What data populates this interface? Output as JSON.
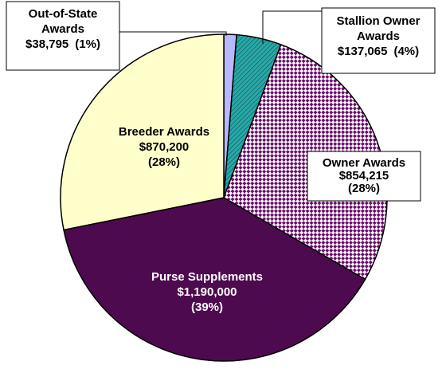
{
  "chart_data": {
    "type": "pie",
    "categories": [
      [
        "Out-of-State",
        "Awards"
      ],
      [
        "Stallion Owner",
        "Awards"
      ],
      [
        "Owner Awards"
      ],
      [
        "Purse Supplements"
      ],
      [
        "Breeder Awards"
      ]
    ],
    "values": [
      38795,
      137065,
      854215,
      1190000,
      870200
    ],
    "value_labels": [
      "$38,795",
      "$137,065",
      "$854,215",
      "$1,190,000",
      "$870,200"
    ],
    "share_labels": [
      "(1%)",
      "(4%)",
      "(28%)",
      "(39%)",
      "(28%)"
    ],
    "colors": [
      "#b8b8ff",
      "#2aa8a8",
      "#6a0a6a",
      "#4e0a4e",
      "#ffffcc"
    ]
  }
}
